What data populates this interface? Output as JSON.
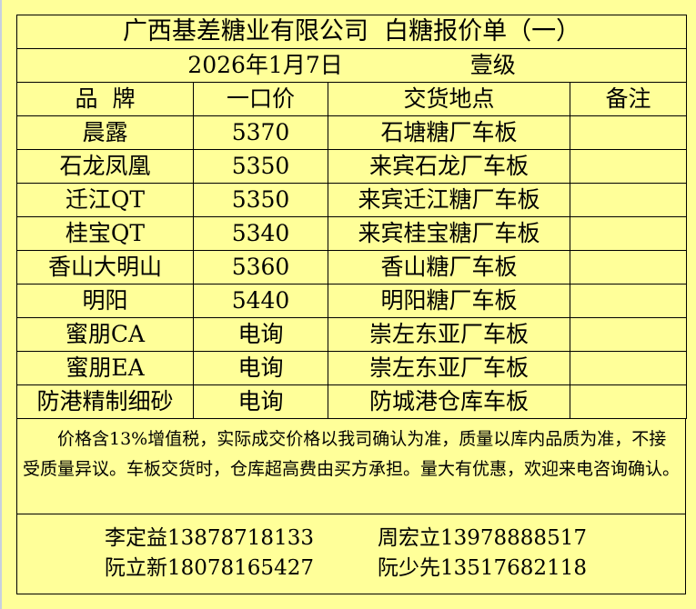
{
  "title": "广西基差糖业有限公司  白糖报价单（一）",
  "date": "2026年1月7日",
  "grade": "壹级",
  "headers": [
    "品  牌",
    "一口价",
    "交货地点",
    "备注"
  ],
  "rows": [
    [
      "晨露",
      "5370",
      "石塘糖厂车板",
      ""
    ],
    [
      "石龙凤凰",
      "5350",
      "来宾石龙厂车板",
      ""
    ],
    [
      "迁江QT",
      "5350",
      "来宾迁江糖厂车板",
      ""
    ],
    [
      "桂宝QT",
      "5340",
      "来宾桂宝糖厂车板",
      ""
    ],
    [
      "香山大明山",
      "5360",
      "香山糖厂车板",
      ""
    ],
    [
      "明阳",
      "5440",
      "明阳糖厂车板",
      ""
    ],
    [
      "蜜朋CA",
      "电询",
      "崇左东亚厂车板",
      ""
    ],
    [
      "蜜朋EA",
      "电询",
      "崇左东亚厂车板",
      ""
    ],
    [
      "防港精制细砂",
      "电询",
      "防城港仓库车板",
      ""
    ]
  ],
  "notes": "价格含13%增值税，实际成交价格以我司确认为准，质量以库内品质为准，不接受质量异议。车板交货时，仓库超高费由买方承担。量大有优惠，欢迎来电咨询确认。",
  "contacts": [
    [
      "李定益13878718133",
      "周宏立13978888517"
    ],
    [
      "阮立新18078165427",
      "阮少先13517682118"
    ]
  ],
  "colors": {
    "background": "#ffff99",
    "border": "#000000"
  }
}
